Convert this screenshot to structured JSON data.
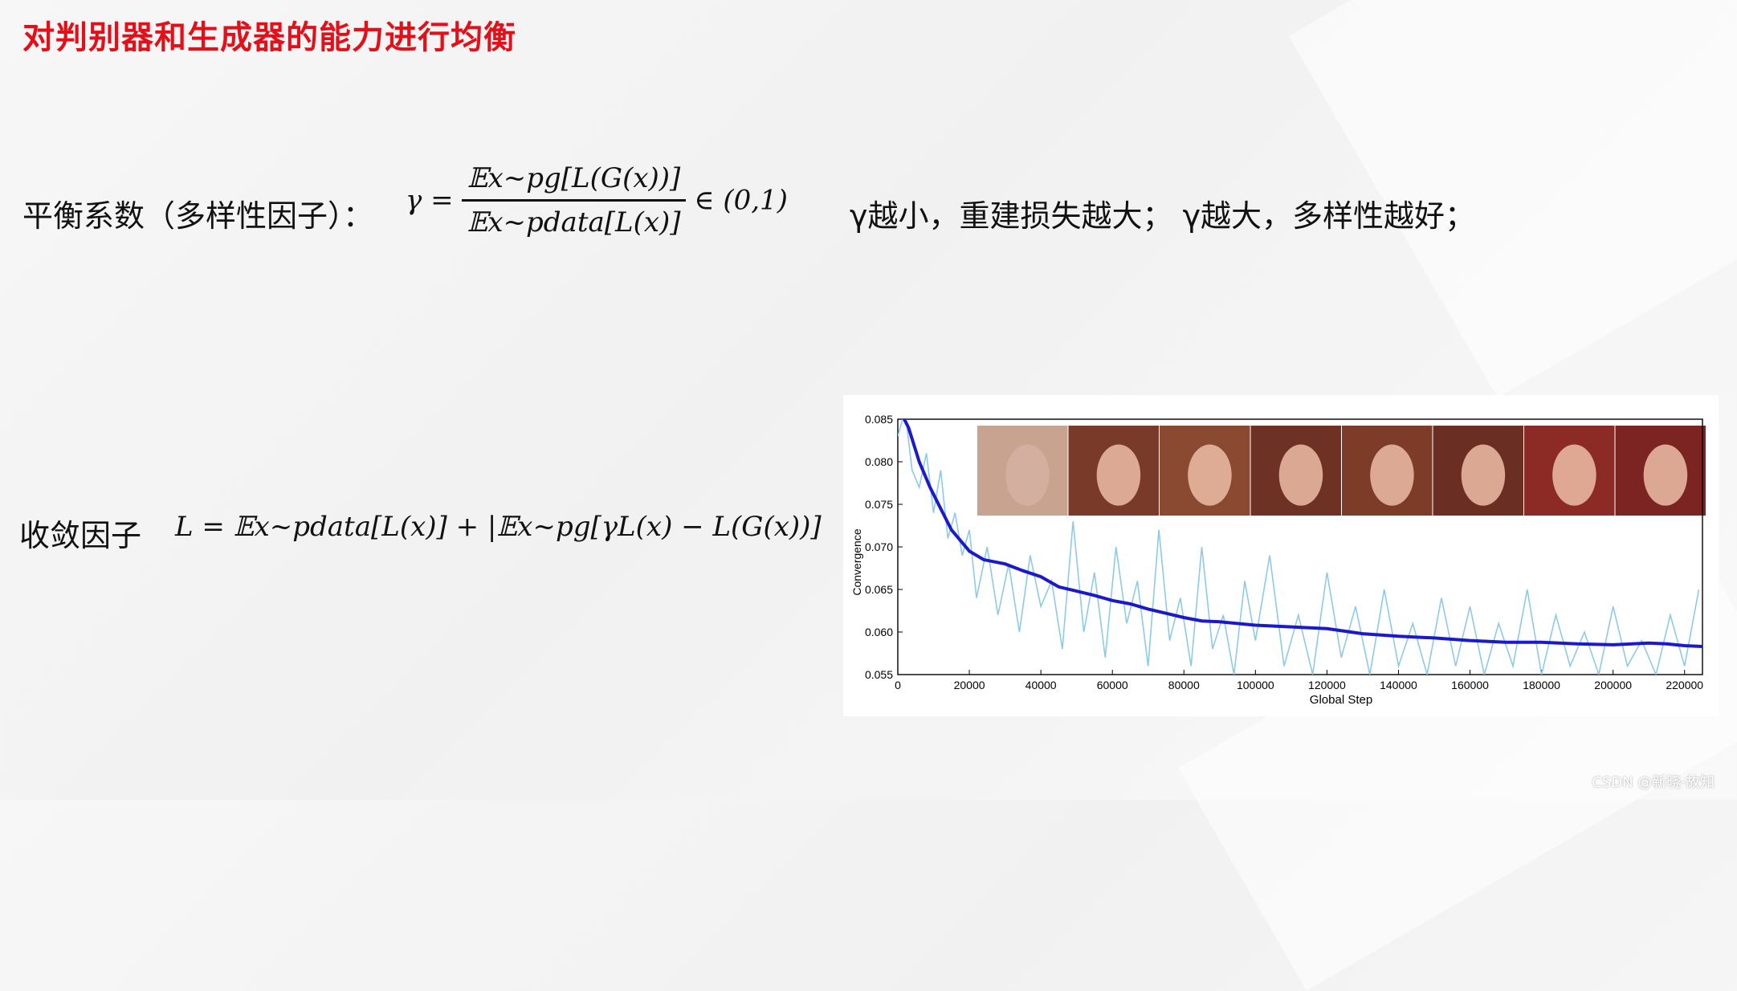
{
  "slide": {
    "title": "对判别器和生成器的能力进行均衡",
    "balance_label": "平衡系数（多样性因子）：",
    "gamma_formula": {
      "lhs": "γ =",
      "numerator": "𝔼x~pg[L(G(x))]",
      "denominator": "𝔼x~pdata[L(x)]",
      "rhs": "∈ (0,1)"
    },
    "gamma_note": "γ越小，重建损失越大；  γ越大，多样性越好；",
    "convergence_label": "收敛因子",
    "convergence_formula": "L = 𝔼x~pdata[L(x)] + |𝔼x~pg[γL(x) − L(G(x))]",
    "watermark": "CSDN @新晓·故知"
  },
  "colors": {
    "title": "#e3101a",
    "smooth_line": "#1a1acc",
    "raw_line": "#8ecae6"
  },
  "chart_data": {
    "type": "line",
    "xlabel": "Global Step",
    "ylabel": "Convergence",
    "xlim": [
      0,
      225000
    ],
    "ylim": [
      0.055,
      0.085
    ],
    "xticks": [
      0,
      20000,
      40000,
      60000,
      80000,
      100000,
      120000,
      140000,
      160000,
      180000,
      200000,
      220000
    ],
    "yticks": [
      0.055,
      0.06,
      0.065,
      0.07,
      0.075,
      0.08,
      0.085
    ],
    "series": [
      {
        "style": "smoothed",
        "x": [
          0,
          3000,
          6000,
          9000,
          12000,
          15000,
          18000,
          20000,
          24000,
          30000,
          35000,
          40000,
          45000,
          50000,
          55000,
          60000,
          65000,
          70000,
          75000,
          80000,
          85000,
          90000,
          100000,
          110000,
          120000,
          130000,
          140000,
          150000,
          160000,
          170000,
          180000,
          190000,
          200000,
          210000,
          215000,
          220000,
          225000
        ],
        "y": [
          0.0865,
          0.084,
          0.08,
          0.077,
          0.0745,
          0.072,
          0.0705,
          0.0695,
          0.0685,
          0.068,
          0.0672,
          0.0665,
          0.0653,
          0.0648,
          0.0643,
          0.0637,
          0.0633,
          0.0627,
          0.0622,
          0.0617,
          0.0613,
          0.0612,
          0.0608,
          0.0606,
          0.0604,
          0.0598,
          0.0595,
          0.0593,
          0.059,
          0.0588,
          0.0588,
          0.0586,
          0.0585,
          0.0587,
          0.0586,
          0.0584,
          0.0583
        ]
      },
      {
        "style": "raw",
        "x": [
          0,
          2000,
          4000,
          6000,
          8000,
          10000,
          12000,
          14000,
          16000,
          18000,
          20000,
          22000,
          25000,
          28000,
          31000,
          34000,
          37000,
          40000,
          43000,
          46000,
          49000,
          52000,
          55000,
          58000,
          61000,
          64000,
          67000,
          70000,
          73000,
          76000,
          79000,
          82000,
          85000,
          88000,
          91000,
          94000,
          97000,
          100000,
          104000,
          108000,
          112000,
          116000,
          120000,
          124000,
          128000,
          132000,
          136000,
          140000,
          144000,
          148000,
          152000,
          156000,
          160000,
          164000,
          168000,
          172000,
          176000,
          180000,
          184000,
          188000,
          192000,
          196000,
          200000,
          204000,
          208000,
          212000,
          216000,
          220000,
          224000
        ],
        "y": [
          0.083,
          0.086,
          0.079,
          0.077,
          0.081,
          0.074,
          0.079,
          0.071,
          0.074,
          0.069,
          0.072,
          0.064,
          0.07,
          0.062,
          0.068,
          0.06,
          0.069,
          0.063,
          0.066,
          0.058,
          0.073,
          0.06,
          0.067,
          0.057,
          0.07,
          0.061,
          0.066,
          0.056,
          0.072,
          0.059,
          0.064,
          0.056,
          0.07,
          0.058,
          0.062,
          0.055,
          0.066,
          0.059,
          0.069,
          0.056,
          0.062,
          0.055,
          0.067,
          0.057,
          0.063,
          0.055,
          0.065,
          0.056,
          0.061,
          0.055,
          0.064,
          0.056,
          0.063,
          0.055,
          0.061,
          0.056,
          0.065,
          0.055,
          0.062,
          0.056,
          0.06,
          0.055,
          0.063,
          0.056,
          0.059,
          0.055,
          0.062,
          0.056,
          0.065
        ]
      }
    ]
  }
}
